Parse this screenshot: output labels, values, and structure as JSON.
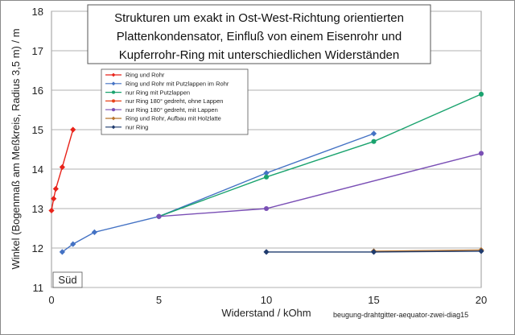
{
  "chart_data": {
    "type": "line",
    "title_lines": [
      "Strukturen um exakt in Ost-West-Richtung orientierten",
      "Plattenkondensator, Einfluß von einem Eisenrohr und",
      "Kupferrohr-Ring mit unterschiedlichen Widerständen"
    ],
    "xlabel": "Widerstand / kOhm",
    "ylabel": "Winkel (Bogenmaß am Meßkreis, Radius 3,5 m) / m",
    "xlim": [
      0,
      20
    ],
    "ylim": [
      11,
      18
    ],
    "x_ticks": [
      "0",
      "5",
      "10",
      "15",
      "20"
    ],
    "y_ticks": [
      "11",
      "12",
      "13",
      "14",
      "15",
      "16",
      "17",
      "18"
    ],
    "grid": "horizontal",
    "legend_position": "top-left",
    "corner_label": "Süd",
    "source_label": "beugung-drahtgitter-aequator-zwei-diag15",
    "series": [
      {
        "name": "Ring und Rohr",
        "color": "#e8231a",
        "marker": "diamond",
        "x": [
          0,
          0.1,
          0.2,
          0.5,
          1.0
        ],
        "y": [
          12.95,
          13.25,
          13.5,
          14.05,
          15.0
        ]
      },
      {
        "name": "Ring und Rohr mit Putzlappen im Rohr",
        "color": "#4472c4",
        "marker": "diamond",
        "x": [
          0.5,
          1,
          2,
          5,
          10,
          15
        ],
        "y": [
          11.9,
          12.1,
          12.4,
          12.8,
          13.9,
          14.9
        ]
      },
      {
        "name": "nur Ring mit Putzlappen",
        "color": "#1aa36e",
        "marker": "circle",
        "x": [
          5,
          10,
          15,
          20
        ],
        "y": [
          12.8,
          13.8,
          14.7,
          15.9
        ]
      },
      {
        "name": "nur Ring 180° gedreht, ohne Lappen",
        "color": "#e8431a",
        "marker": "circle",
        "x": [],
        "y": []
      },
      {
        "name": "nur Ring 180° gedreht, mit Lappen",
        "color": "#7a4fb5",
        "marker": "circle",
        "x": [
          5,
          10,
          20
        ],
        "y": [
          12.8,
          13.0,
          14.4
        ]
      },
      {
        "name": "Ring und Rohr, Aufbau mit Holzlatte",
        "color": "#b8732b",
        "marker": "diamond",
        "x": [
          15,
          20
        ],
        "y": [
          11.92,
          11.95
        ]
      },
      {
        "name": "nur Ring",
        "color": "#1f3b6e",
        "marker": "diamond",
        "x": [
          10,
          15,
          20
        ],
        "y": [
          11.9,
          11.9,
          11.92
        ]
      }
    ]
  }
}
